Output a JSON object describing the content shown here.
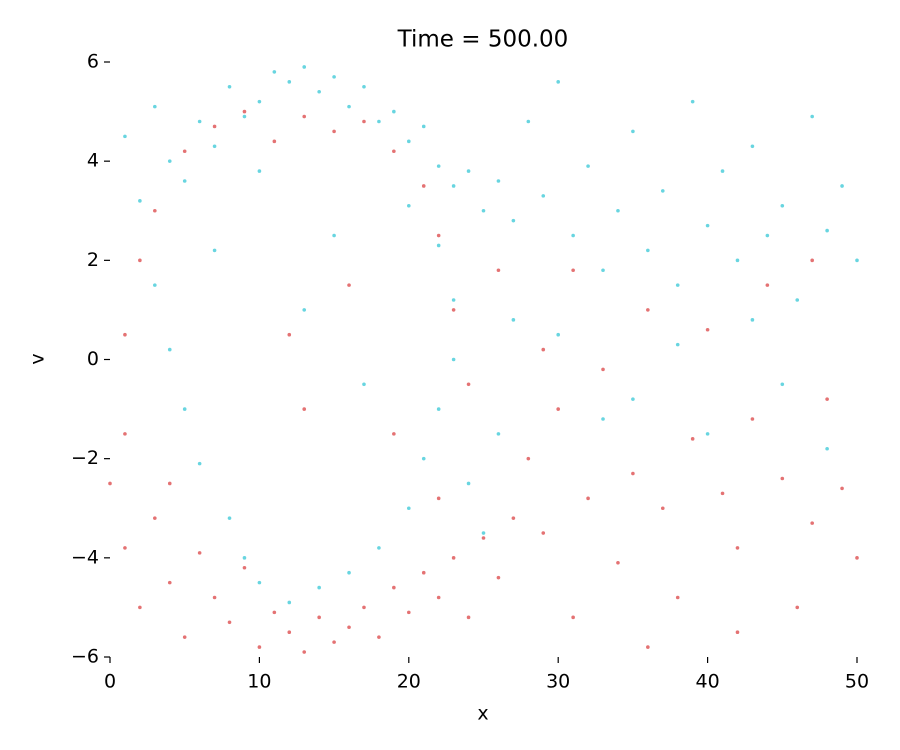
{
  "chart_data": {
    "type": "scatter",
    "title": "Time = 500.00",
    "x_label": "x",
    "y_label": "v",
    "xlim": [
      0,
      50
    ],
    "ylim": [
      -6,
      6
    ],
    "xticks": [
      0,
      10,
      20,
      30,
      40,
      50
    ],
    "yticks": [
      {
        "value": -6,
        "label": "−6"
      },
      {
        "value": -4,
        "label": "−4"
      },
      {
        "value": -2,
        "label": "−2"
      },
      0,
      2,
      4,
      6
    ],
    "series": [
      {
        "color": "#d62728",
        "x": [
          0,
          1,
          2,
          3,
          4,
          5,
          6,
          7,
          8,
          9,
          10,
          11,
          12,
          13,
          14,
          15,
          16,
          17,
          18,
          19,
          20,
          21,
          22,
          23,
          24,
          25,
          26,
          27,
          1,
          2,
          1,
          3,
          4,
          5,
          7,
          9,
          11,
          13,
          15,
          17,
          19,
          21,
          22,
          23,
          24,
          22,
          19,
          13,
          12,
          16,
          28,
          29,
          30,
          31,
          32,
          33,
          34,
          35,
          36,
          37,
          38,
          39,
          40,
          41,
          42,
          43,
          44,
          45,
          46,
          47,
          48,
          49,
          50,
          31,
          36,
          42,
          47,
          29,
          26
        ],
        "values": [
          -2.5,
          -3.8,
          -5.0,
          -3.2,
          -4.5,
          -5.6,
          -3.9,
          -4.8,
          -5.3,
          -4.2,
          -5.8,
          -5.1,
          -5.5,
          -5.9,
          -5.2,
          -5.7,
          -5.4,
          -5.0,
          -5.6,
          -4.6,
          -5.1,
          -4.3,
          -4.8,
          -4.0,
          -5.2,
          -3.6,
          -4.4,
          -3.2,
          0.5,
          2.0,
          -1.5,
          3.0,
          -2.5,
          4.2,
          4.7,
          5.0,
          4.4,
          4.9,
          4.6,
          4.8,
          4.2,
          3.5,
          2.5,
          1.0,
          -0.5,
          -2.8,
          -1.5,
          -1.0,
          0.5,
          1.5,
          -2.0,
          -3.5,
          -1.0,
          -5.2,
          -2.8,
          -0.2,
          -4.1,
          -2.3,
          1.0,
          -3.0,
          -4.8,
          -1.6,
          0.6,
          -2.7,
          -3.8,
          -1.2,
          1.5,
          -2.4,
          -5.0,
          -3.3,
          -0.8,
          -2.6,
          -4.0,
          1.8,
          -5.8,
          -5.5,
          2.0,
          0.2,
          1.8
        ]
      },
      {
        "color": "#17becf",
        "x": [
          1,
          2,
          3,
          4,
          5,
          6,
          7,
          8,
          9,
          10,
          11,
          12,
          13,
          14,
          15,
          16,
          17,
          18,
          19,
          20,
          21,
          22,
          23,
          24,
          25,
          26,
          27,
          3,
          4,
          5,
          6,
          7,
          8,
          9,
          10,
          12,
          14,
          16,
          18,
          20,
          21,
          22,
          23,
          23,
          22,
          20,
          10,
          13,
          17,
          15,
          28,
          29,
          30,
          31,
          32,
          33,
          34,
          35,
          36,
          37,
          38,
          39,
          40,
          41,
          42,
          43,
          44,
          45,
          46,
          47,
          48,
          49,
          50,
          30,
          35,
          40,
          45,
          48,
          33,
          38,
          43,
          26,
          27,
          25,
          24
        ],
        "values": [
          4.5,
          3.2,
          5.1,
          4.0,
          3.6,
          4.8,
          4.3,
          5.5,
          4.9,
          5.2,
          5.8,
          5.6,
          5.9,
          5.4,
          5.7,
          5.1,
          5.5,
          4.8,
          5.0,
          4.4,
          4.7,
          3.9,
          3.5,
          3.8,
          3.0,
          3.6,
          2.8,
          1.5,
          0.2,
          -1.0,
          -2.1,
          2.2,
          -3.2,
          -4.0,
          -4.5,
          -4.9,
          -4.6,
          -4.3,
          -3.8,
          -3.0,
          -2.0,
          -1.0,
          0.0,
          1.2,
          2.3,
          3.1,
          3.8,
          1.0,
          -0.5,
          2.5,
          4.8,
          3.3,
          5.6,
          2.5,
          3.9,
          1.8,
          3.0,
          4.6,
          2.2,
          3.4,
          1.5,
          5.2,
          2.7,
          3.8,
          2.0,
          4.3,
          2.5,
          3.1,
          1.2,
          4.9,
          2.6,
          3.5,
          2.0,
          0.5,
          -0.8,
          -1.5,
          -0.5,
          -1.8,
          -1.2,
          0.3,
          0.8,
          -1.5,
          0.8,
          -3.5,
          -2.5
        ]
      }
    ]
  }
}
